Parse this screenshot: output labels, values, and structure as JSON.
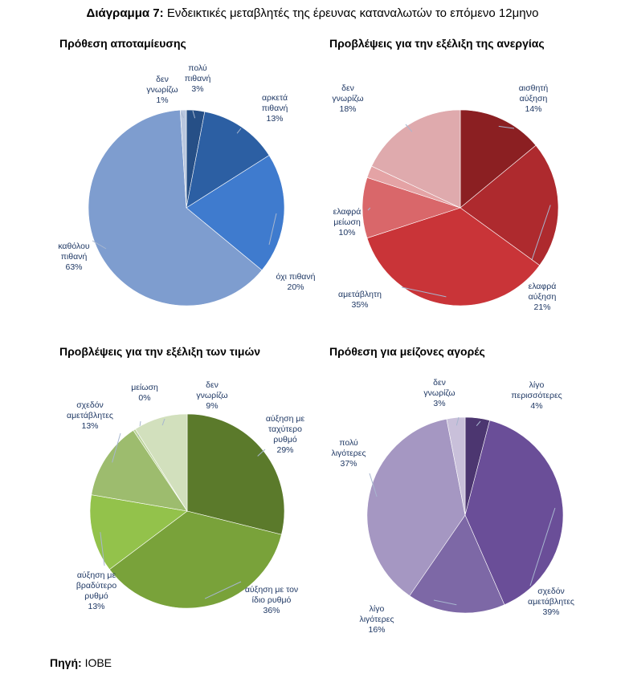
{
  "figure": {
    "title_prefix": "Διάγραμμα 7:",
    "title_text": "Ενδεικτικές μεταβλητές της έρευνας καταναλωτών το επόμενο 12μηνο",
    "source_prefix": "Πηγή:",
    "source_text": "ΙΟΒΕ"
  },
  "chart_data": [
    {
      "type": "pie",
      "title": "Πρόθεση αποταμίευσης",
      "slices": [
        {
          "label": [
            "πολύ",
            "πιθανή"
          ],
          "pct": "3%",
          "value": 3,
          "color": "#264f86"
        },
        {
          "label": [
            "αρκετά",
            "πιθανή"
          ],
          "pct": "13%",
          "value": 13,
          "color": "#2c5fa3"
        },
        {
          "label": [
            "όχι πιθανή"
          ],
          "pct": "20%",
          "value": 20,
          "color": "#3f7bce"
        },
        {
          "label": [
            "καθόλου",
            "πιθανή"
          ],
          "pct": "63%",
          "value": 63,
          "color": "#7e9dcf"
        },
        {
          "label": [
            "δεν",
            "γνωρίζω"
          ],
          "pct": "1%",
          "value": 1,
          "color": "#b9c7df"
        }
      ]
    },
    {
      "type": "pie",
      "title": "Προβλέψεις για την εξέλιξη της ανεργίας",
      "slices": [
        {
          "label": [
            "αισθητή",
            "αύξηση"
          ],
          "pct": "14%",
          "value": 14,
          "color": "#8b1f22"
        },
        {
          "label": [
            "ελαφρά",
            "αύξηση"
          ],
          "pct": "21%",
          "value": 21,
          "color": "#ae2a2e"
        },
        {
          "label": [
            "αμετάβλητη"
          ],
          "pct": "35%",
          "value": 35,
          "color": "#c93438"
        },
        {
          "label": [
            "ελαφρά",
            "μείωση"
          ],
          "pct": "10%",
          "value": 10,
          "color": "#d9676a"
        },
        {
          "label": [],
          "pct": "",
          "value": 2,
          "color": "#e4a3a5"
        },
        {
          "label": [
            "δεν",
            "γνωρίζω"
          ],
          "pct": "18%",
          "value": 18,
          "color": "#dfaaad"
        }
      ]
    },
    {
      "type": "pie",
      "title": "Προβλέψεις για την εξέλιξη των τιμών",
      "slices": [
        {
          "label": [
            "αύξηση με",
            "ταχύτερο",
            "ρυθμό"
          ],
          "pct": "29%",
          "value": 29,
          "color": "#5b7a2b"
        },
        {
          "label": [
            "αύξηση με τον",
            "ίδιο ρυθμό"
          ],
          "pct": "36%",
          "value": 36,
          "color": "#79a23a"
        },
        {
          "label": [
            "αύξηση με",
            "βραδύτερο",
            "ρυθμό"
          ],
          "pct": "13%",
          "value": 13,
          "color": "#93c24b"
        },
        {
          "label": [
            "σχεδόν",
            "αμετάβλητες"
          ],
          "pct": "13%",
          "value": 13,
          "color": "#9dbc6e"
        },
        {
          "label": [
            "μείωση"
          ],
          "pct": "0%",
          "value": 0.4,
          "color": "#bcd49a"
        },
        {
          "label": [
            "δεν",
            "γνωρίζω"
          ],
          "pct": "9%",
          "value": 9,
          "color": "#d2e0bd"
        }
      ]
    },
    {
      "type": "pie",
      "title": "Πρόθεση για μείζονες αγορές",
      "slices": [
        {
          "label": [
            "λίγο",
            "περισσότερες"
          ],
          "pct": "4%",
          "value": 4,
          "color": "#4c3670"
        },
        {
          "label": [
            "σχεδόν",
            "αμετάβλητες"
          ],
          "pct": "39%",
          "value": 39,
          "color": "#6a4e98"
        },
        {
          "label": [
            "λίγο",
            "λιγότερες"
          ],
          "pct": "16%",
          "value": 16,
          "color": "#7d68a6"
        },
        {
          "label": [
            "πολύ",
            "λιγότερες"
          ],
          "pct": "37%",
          "value": 37,
          "color": "#a597c2"
        },
        {
          "label": [
            "δεν",
            "γνωρίζω"
          ],
          "pct": "3%",
          "value": 3,
          "color": "#c9c0da"
        }
      ]
    }
  ]
}
